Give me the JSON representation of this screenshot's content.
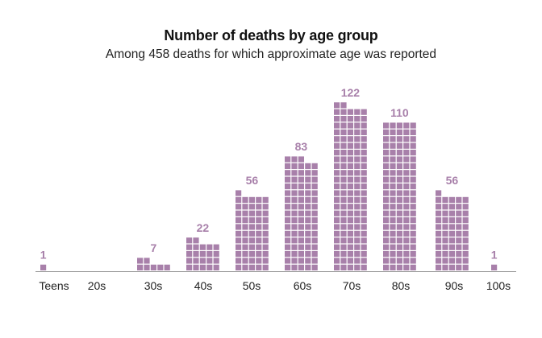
{
  "chart_data": {
    "type": "bar",
    "title": "Number of deaths by age group",
    "subtitle": "Among 458 deaths for which approximate age was reported",
    "categories": [
      "Teens",
      "20s",
      "30s",
      "40s",
      "50s",
      "60s",
      "70s",
      "80s",
      "90s",
      "100s"
    ],
    "values": [
      1,
      0,
      7,
      22,
      56,
      83,
      122,
      110,
      56,
      1
    ],
    "units_per_row": 5,
    "xlabel": "",
    "ylabel": "",
    "grid": false,
    "legend": "none",
    "colors": {
      "bar": "#a880aa",
      "label": "#a880aa",
      "axis": "#999999",
      "text": "#222222"
    }
  }
}
